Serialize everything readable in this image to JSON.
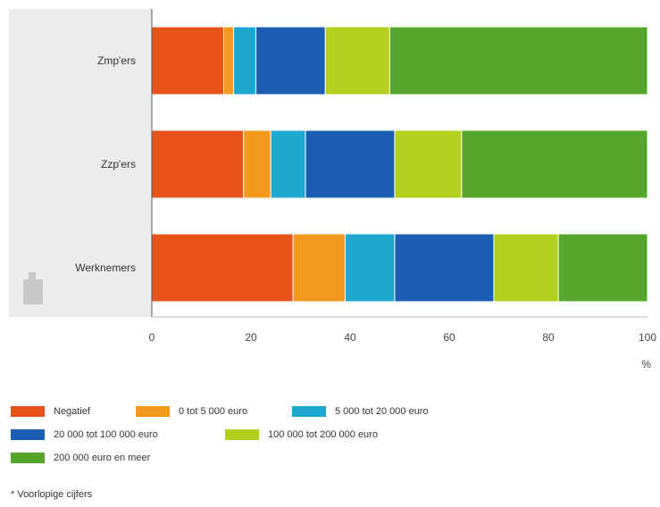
{
  "chart_data": {
    "type": "bar",
    "orientation": "horizontal",
    "stacked": true,
    "categories": [
      "Zmp'ers",
      "Zzp'ers",
      "Werknemers"
    ],
    "series": [
      {
        "name": "Negatief",
        "color": "#e5531a",
        "values": [
          14.5,
          18.5,
          28.5
        ]
      },
      {
        "name": "0 tot 5 000 euro",
        "color": "#f39a1e",
        "values": [
          2,
          5.5,
          10.5
        ]
      },
      {
        "name": "5 000 tot 20 000 euro",
        "color": "#1ea7cf",
        "values": [
          4.5,
          7,
          10
        ]
      },
      {
        "name": "20 000 tot 100 000 euro",
        "color": "#1a5fb4",
        "values": [
          14,
          18,
          20
        ]
      },
      {
        "name": "100 000 tot 200 000 euro",
        "color": "#b5cf1e",
        "values": [
          13,
          13.5,
          13
        ]
      },
      {
        "name": "200 000 euro en meer",
        "color": "#55a62a",
        "values": [
          52,
          37.5,
          18
        ]
      }
    ],
    "xlim": [
      0,
      100
    ],
    "xticks": [
      "0",
      "20",
      "40",
      "60",
      "80",
      "100"
    ],
    "xlabel": "%",
    "ylabel": "",
    "title": "",
    "grid": false,
    "legend_position": "bottom"
  },
  "footnote": "* Voorlopige cijfers"
}
